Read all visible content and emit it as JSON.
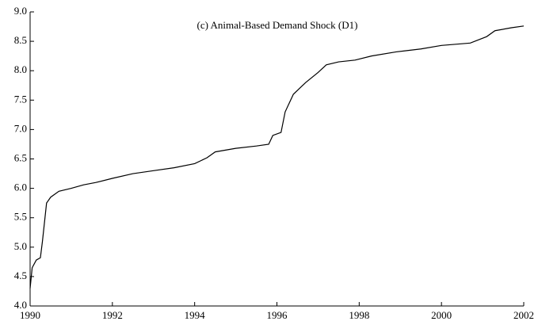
{
  "chart_data": {
    "type": "line",
    "title": "(c) Animal-Based Demand Shock (D1)",
    "x": [
      1990.0,
      1990.05,
      1990.15,
      1990.25,
      1990.3,
      1990.4,
      1990.5,
      1990.7,
      1991.0,
      1991.3,
      1991.6,
      1992.0,
      1992.5,
      1993.0,
      1993.5,
      1994.0,
      1994.3,
      1994.5,
      1995.0,
      1995.5,
      1995.8,
      1995.9,
      1996.1,
      1996.2,
      1996.4,
      1996.7,
      1997.0,
      1997.2,
      1997.5,
      1997.9,
      1998.3,
      1998.9,
      1999.5,
      2000.0,
      2000.7,
      2001.1,
      2001.3,
      2001.7,
      2002.0
    ],
    "series": [
      {
        "color": "#000000",
        "values": [
          4.3,
          4.65,
          4.78,
          4.82,
          5.1,
          5.75,
          5.85,
          5.95,
          6.0,
          6.06,
          6.1,
          6.17,
          6.25,
          6.3,
          6.35,
          6.42,
          6.52,
          6.62,
          6.68,
          6.72,
          6.75,
          6.9,
          6.95,
          7.3,
          7.6,
          7.8,
          7.97,
          8.1,
          8.15,
          8.18,
          8.25,
          8.32,
          8.37,
          8.43,
          8.47,
          8.58,
          8.68,
          8.73,
          8.76
        ]
      }
    ],
    "xlim": [
      1990,
      2002
    ],
    "xticks": [
      1990,
      1992,
      1994,
      1996,
      1998,
      2000,
      2002
    ],
    "ylim": [
      4,
      9
    ],
    "yticks": [
      {
        "value": 4,
        "label": "4.0"
      },
      4.5,
      {
        "value": 5,
        "label": "5.0"
      },
      5.5,
      {
        "value": 6,
        "label": "6.0"
      },
      6.5,
      {
        "value": 7,
        "label": "7.0"
      },
      7.5,
      {
        "value": 8,
        "label": "8.0"
      },
      8.5,
      {
        "value": 9,
        "label": "9.0"
      }
    ]
  }
}
